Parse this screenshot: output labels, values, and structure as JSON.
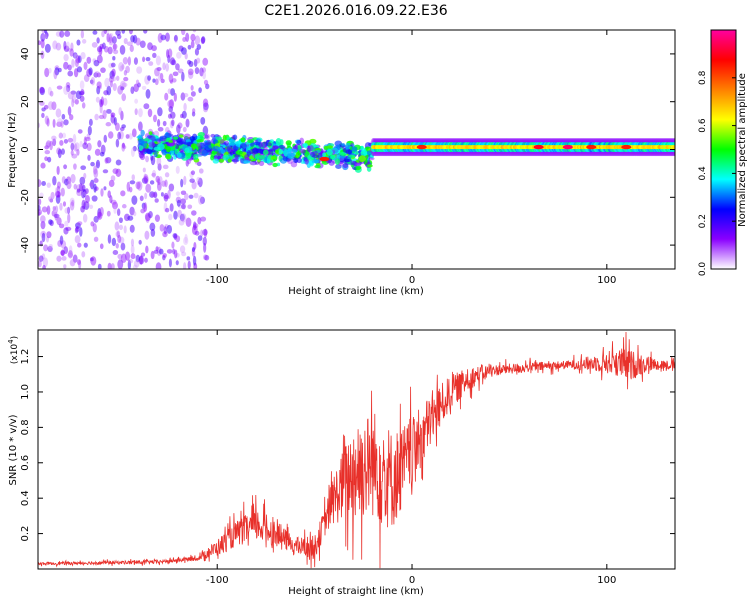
{
  "title": "C2E1.2026.016.09.22.E36",
  "chart_data": [
    {
      "type": "heatmap",
      "name": "spectrogram",
      "xlabel": "Height of straight line (km)",
      "ylabel": "Frequency (Hz)",
      "xlim": [
        -192,
        135
      ],
      "ylim": [
        -50,
        50
      ],
      "xticks": [
        -100,
        0,
        100
      ],
      "yticks": [
        -40,
        -20,
        0,
        20,
        40
      ],
      "colorbar": {
        "label": "Normalized spectral amplitude",
        "range": [
          0,
          1
        ],
        "ticks": [
          "0.0",
          "0.2",
          "0.4",
          "0.6",
          "0.8"
        ],
        "tick_values": [
          0.0,
          0.2,
          0.4,
          0.6,
          0.8
        ],
        "colors": [
          "#ffffff",
          "#8a00ff",
          "#0000ff",
          "#00ffff",
          "#00ff00",
          "#ffff00",
          "#ff8000",
          "#ff0000",
          "#ff00a0"
        ]
      },
      "regions": [
        {
          "x_range": [
            -192,
            -105
          ],
          "description": "scattered noise",
          "freq_spread": 50,
          "amplitude": 0.12
        },
        {
          "x_range": [
            -140,
            -20
          ],
          "description": "main band, center near 0 to -4 Hz",
          "freq_spread": 6,
          "amplitude": 0.45
        },
        {
          "x_range": [
            -20,
            135
          ],
          "description": "narrow line at ~1 Hz",
          "freq_spread": 2,
          "amplitude": 0.6
        }
      ],
      "hotspots": [
        {
          "x": -45,
          "y": -4,
          "amplitude": 0.85
        },
        {
          "x": 5,
          "y": 1,
          "amplitude": 0.85
        },
        {
          "x": 65,
          "y": 1,
          "amplitude": 0.9
        },
        {
          "x": 80,
          "y": 1,
          "amplitude": 0.95
        },
        {
          "x": 92,
          "y": 1,
          "amplitude": 0.85
        },
        {
          "x": 110,
          "y": 1,
          "amplitude": 0.85
        }
      ]
    },
    {
      "type": "line",
      "name": "snr",
      "xlabel": "Height of straight line (km)",
      "ylabel": "SNR (10 * v/v)",
      "scale_label": "(x10",
      "scale_exp": "4",
      "scale_close": ")",
      "xlim": [
        -192,
        135
      ],
      "ylim": [
        0,
        1.35
      ],
      "xticks": [
        -100,
        0,
        100
      ],
      "yticks": [
        0.2,
        0.4,
        0.6,
        0.8,
        1.0,
        1.2
      ],
      "color": "#e8302a",
      "trend": [
        {
          "x": -192,
          "y": 0.03
        },
        {
          "x": -130,
          "y": 0.04
        },
        {
          "x": -110,
          "y": 0.06
        },
        {
          "x": -100,
          "y": 0.12
        },
        {
          "x": -90,
          "y": 0.2
        },
        {
          "x": -80,
          "y": 0.25
        },
        {
          "x": -70,
          "y": 0.2
        },
        {
          "x": -60,
          "y": 0.13
        },
        {
          "x": -50,
          "y": 0.12
        },
        {
          "x": -40,
          "y": 0.4
        },
        {
          "x": -30,
          "y": 0.55
        },
        {
          "x": -20,
          "y": 0.6
        },
        {
          "x": -10,
          "y": 0.5
        },
        {
          "x": 0,
          "y": 0.65
        },
        {
          "x": 10,
          "y": 0.85
        },
        {
          "x": 20,
          "y": 1.0
        },
        {
          "x": 30,
          "y": 1.08
        },
        {
          "x": 40,
          "y": 1.12
        },
        {
          "x": 60,
          "y": 1.14
        },
        {
          "x": 90,
          "y": 1.16
        },
        {
          "x": 105,
          "y": 1.17
        },
        {
          "x": 112,
          "y": 1.15
        },
        {
          "x": 120,
          "y": 1.16
        },
        {
          "x": 135,
          "y": 1.15
        }
      ],
      "noise": [
        {
          "x": -192,
          "a": 0.01
        },
        {
          "x": -110,
          "a": 0.015
        },
        {
          "x": -100,
          "a": 0.06
        },
        {
          "x": -80,
          "a": 0.12
        },
        {
          "x": -60,
          "a": 0.06
        },
        {
          "x": -45,
          "a": 0.1
        },
        {
          "x": -30,
          "a": 0.35
        },
        {
          "x": -15,
          "a": 0.4
        },
        {
          "x": 0,
          "a": 0.25
        },
        {
          "x": 20,
          "a": 0.12
        },
        {
          "x": 40,
          "a": 0.04
        },
        {
          "x": 80,
          "a": 0.03
        },
        {
          "x": 95,
          "a": 0.06
        },
        {
          "x": 110,
          "a": 0.12
        },
        {
          "x": 125,
          "a": 0.04
        },
        {
          "x": 135,
          "a": 0.03
        }
      ]
    }
  ]
}
